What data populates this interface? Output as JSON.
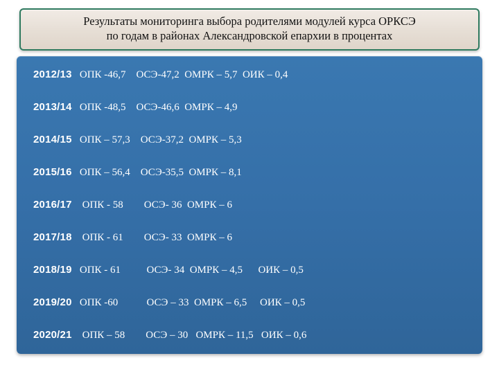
{
  "title": {
    "line1": "Результаты мониторинга выбора родителями модулей курса ОРКСЭ",
    "line2": "по годам в районах Александровской епархии в процентах"
  },
  "colors": {
    "title_border": "#2f7a5f",
    "title_bg_top": "#f1ebe5",
    "title_bg_bottom": "#dfd5ca",
    "panel_bg_top": "#3a78b1",
    "panel_bg_bottom": "#2f6599",
    "text_title": "#111111",
    "text_panel": "#ffffff"
  },
  "typography": {
    "title_fontsize": 16.5,
    "row_fontsize": 15,
    "year_font": "Arial",
    "body_font": "Georgia"
  },
  "rows": [
    {
      "year": "2012/13",
      "rest": "   ОПК -46,7    ОСЭ-47,2  ОМРК – 5,7  ОИК – 0,4"
    },
    {
      "year": "2013/14",
      "rest": "   ОПК -48,5    ОСЭ-46,6  ОМРК – 4,9"
    },
    {
      "year": "2014/15",
      "rest": "   ОПК – 57,3    ОСЭ-37,2  ОМРК – 5,3"
    },
    {
      "year": "2015/16",
      "rest": "   ОПК – 56,4    ОСЭ-35,5  ОМРК – 8,1"
    },
    {
      "year": "2016/17",
      "rest": "    ОПК - 58        ОСЭ- 36  ОМРК – 6"
    },
    {
      "year": "2017/18",
      "rest": "    ОПК - 61        ОСЭ- 33  ОМРК – 6"
    },
    {
      "year": "2018/19",
      "rest": "   ОПК - 61          ОСЭ- 34  ОМРК – 4,5      ОИК – 0,5"
    },
    {
      "year": "2019/20",
      "rest": "   ОПК -60           ОСЭ – 33  ОМРК – 6,5     ОИК – 0,5"
    },
    {
      "year": "2020/21",
      "rest": "    ОПК – 58        ОСЭ – 30   ОМРК – 11,5   ОИК – 0,6"
    }
  ]
}
